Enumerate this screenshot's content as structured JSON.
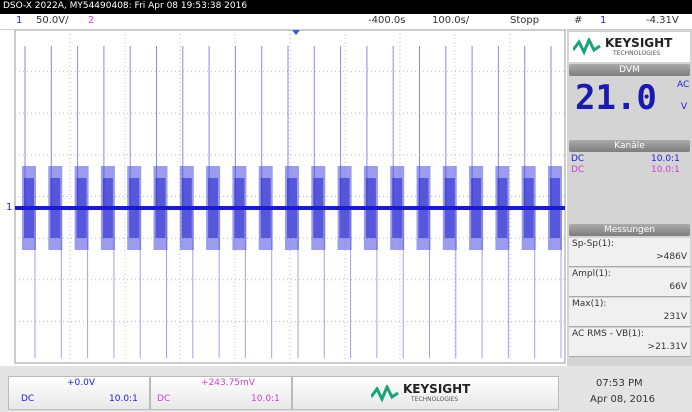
{
  "header": {
    "title": "DSO-X 2022A, MY54490408: Fri Apr 08 19:53:38 2016"
  },
  "status_bar": {
    "ch1_number": "1",
    "ch1_scale": "50.0V/",
    "ch2_number": "2",
    "time_offset": "-400.0s",
    "time_scale": "100.0s/",
    "run_state": "Stopp",
    "trigger_symbol": "#",
    "trigger_channel": "1",
    "trigger_level": "-4.31V"
  },
  "sidebar": {
    "brand": "KEYSIGHT",
    "brand_sub": "TECHNOLOGIES",
    "dvm": {
      "title": "DVM",
      "reading": "21.0",
      "mode": "AC",
      "unit": "V"
    },
    "channels": {
      "title": "Kanäle",
      "rows": [
        {
          "coupling": "DC",
          "probe": "10.0:1"
        },
        {
          "coupling": "DC",
          "probe": "10.0:1"
        }
      ]
    },
    "measurements": {
      "title": "Messungen",
      "items": [
        {
          "label": "Sp-Sp(1):",
          "value": ">486V"
        },
        {
          "label": "Ampl(1):",
          "value": "66V"
        },
        {
          "label": "Max(1):",
          "value": "231V"
        },
        {
          "label": "AC RMS - VB(1):",
          "value": ">21.31V"
        }
      ]
    }
  },
  "footer": {
    "channels": [
      {
        "offset": "+0.0V",
        "coupling": "DC",
        "probe": "10.0:1"
      },
      {
        "offset": "+243.75mV",
        "coupling": "DC",
        "probe": "10.0:1"
      }
    ],
    "brand": "KEYSIGHT",
    "brand_sub": "TECHNOLOGIES",
    "time": "07:53 PM",
    "date": "Apr 08, 2016"
  }
}
